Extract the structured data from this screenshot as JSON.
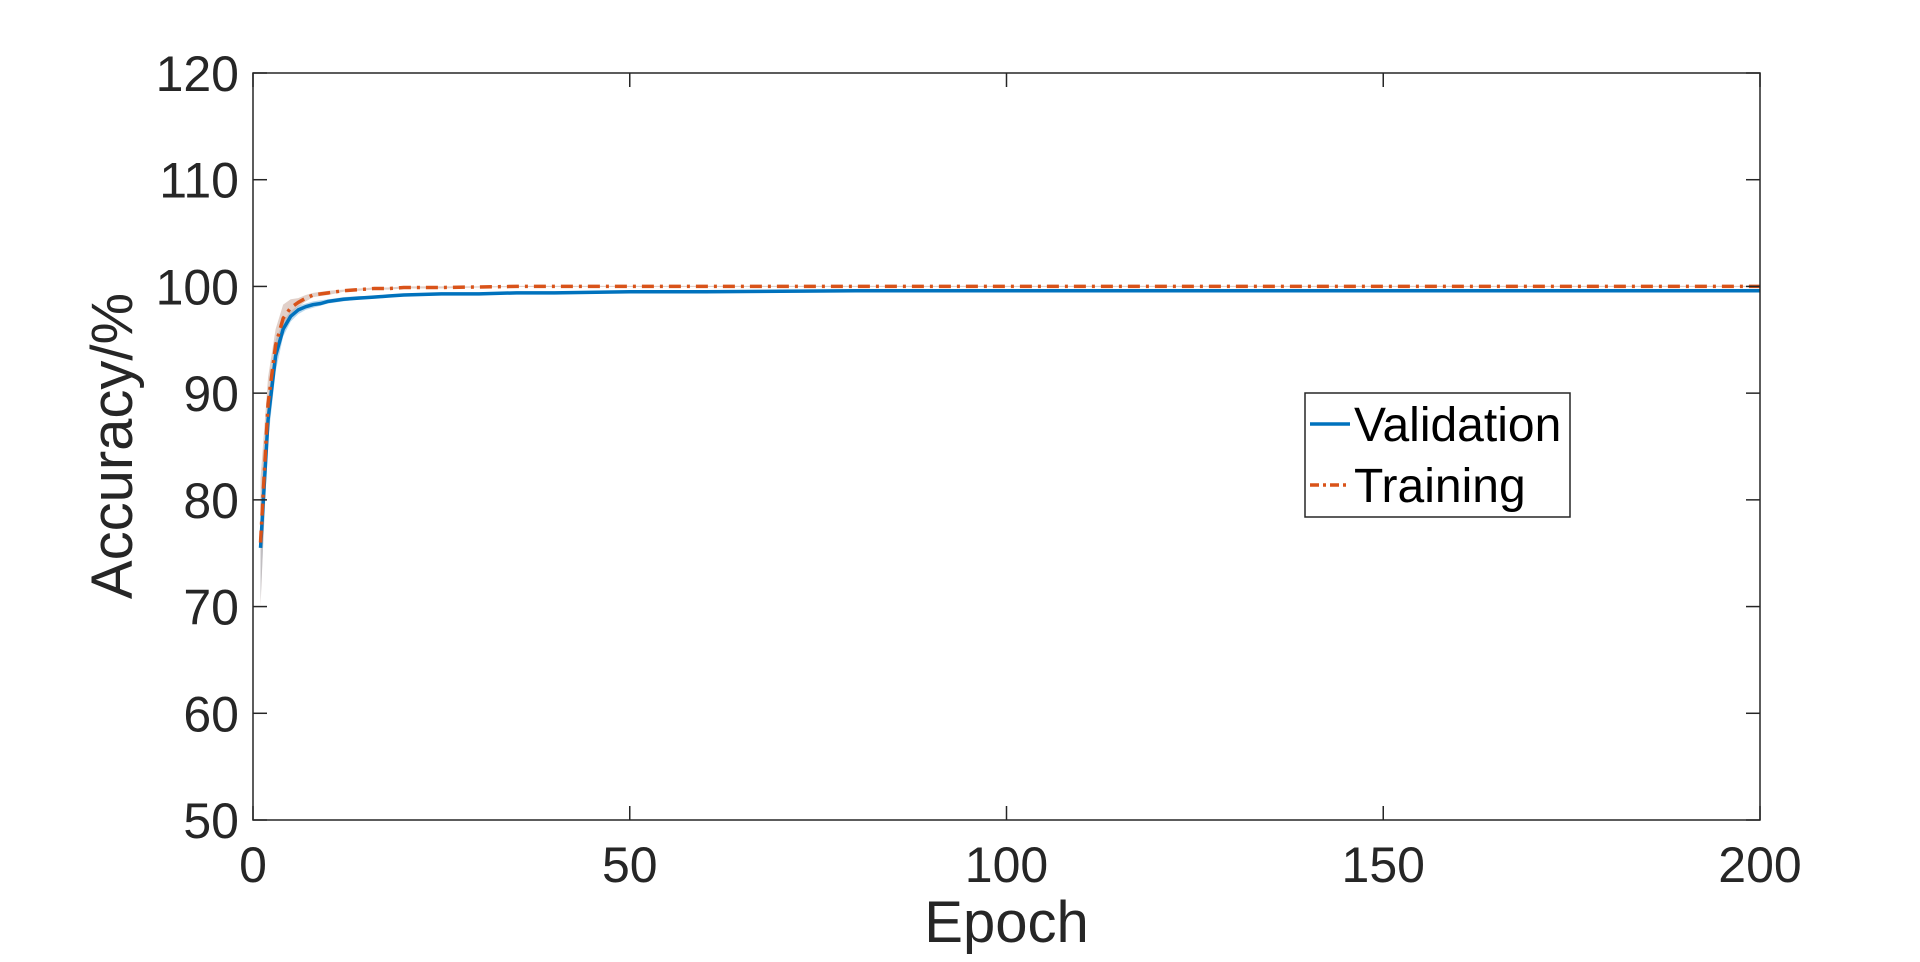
{
  "chart_data": {
    "type": "line",
    "xlabel": "Epoch",
    "ylabel": "Accuracy/%",
    "xlim": [
      0,
      200
    ],
    "ylim": [
      50,
      120
    ],
    "xticks": [
      0,
      50,
      100,
      150,
      200
    ],
    "yticks": [
      50,
      60,
      70,
      80,
      90,
      100,
      110,
      120
    ],
    "grid": false,
    "legend_position": "center-right",
    "series": [
      {
        "name": "Validation",
        "color": "#0072BD",
        "line_style": "solid",
        "band_color": "#7fb8de",
        "x": [
          1,
          2,
          3,
          4,
          5,
          6,
          7,
          8,
          9,
          10,
          12,
          14,
          16,
          18,
          20,
          25,
          30,
          35,
          40,
          50,
          60,
          80,
          100,
          120,
          140,
          160,
          180,
          200
        ],
        "y": [
          75.5,
          87.5,
          93.5,
          96.0,
          97.2,
          97.8,
          98.1,
          98.3,
          98.4,
          98.6,
          98.8,
          98.9,
          99.0,
          99.1,
          99.2,
          99.3,
          99.3,
          99.4,
          99.4,
          99.5,
          99.5,
          99.6,
          99.6,
          99.6,
          99.6,
          99.6,
          99.6,
          99.6
        ],
        "band_low": [
          70.5,
          85.5,
          92.0,
          95.3,
          96.7,
          97.4,
          97.8,
          98.0,
          98.2,
          98.4,
          98.6,
          98.8,
          98.9,
          99.0,
          99.1,
          99.2,
          99.2,
          99.3,
          99.3,
          99.4,
          99.4,
          99.5,
          99.5,
          99.5,
          99.5,
          99.5,
          99.5,
          99.5
        ],
        "band_high": [
          80.0,
          89.5,
          95.0,
          96.7,
          97.7,
          98.2,
          98.4,
          98.6,
          98.7,
          98.8,
          99.0,
          99.1,
          99.1,
          99.2,
          99.3,
          99.4,
          99.4,
          99.5,
          99.5,
          99.6,
          99.6,
          99.7,
          99.7,
          99.7,
          99.7,
          99.7,
          99.7,
          99.7
        ]
      },
      {
        "name": "Training",
        "color": "#D95319",
        "line_style": "dash-dot",
        "band_color": "#c9a99c",
        "x": [
          1,
          2,
          3,
          4,
          5,
          6,
          7,
          8,
          9,
          10,
          12,
          14,
          16,
          18,
          20,
          25,
          30,
          35,
          40,
          50,
          60,
          80,
          100,
          120,
          140,
          160,
          180,
          200
        ],
        "y": [
          76.0,
          89.0,
          94.5,
          97.0,
          98.0,
          98.5,
          98.9,
          99.2,
          99.3,
          99.4,
          99.6,
          99.7,
          99.8,
          99.8,
          99.9,
          99.9,
          99.95,
          100.0,
          100.0,
          100.0,
          100.0,
          100.0,
          100.0,
          100.0,
          100.0,
          100.0,
          100.0,
          100.0
        ],
        "band_low": [
          70.0,
          86.5,
          93.0,
          96.0,
          97.4,
          98.1,
          98.6,
          99.0,
          99.1,
          99.2,
          99.5,
          99.6,
          99.7,
          99.7,
          99.8,
          99.8,
          99.9,
          99.95,
          99.95,
          99.95,
          99.95,
          99.95,
          99.95,
          99.95,
          99.95,
          99.95,
          99.95,
          99.95
        ],
        "band_high": [
          82.0,
          91.5,
          96.0,
          98.3,
          98.8,
          98.9,
          99.2,
          99.4,
          99.5,
          99.6,
          99.7,
          99.8,
          99.9,
          99.9,
          100.0,
          100.0,
          100.0,
          100.05,
          100.05,
          100.05,
          100.05,
          100.05,
          100.05,
          100.05,
          100.05,
          100.05,
          100.05,
          100.05
        ]
      }
    ]
  }
}
